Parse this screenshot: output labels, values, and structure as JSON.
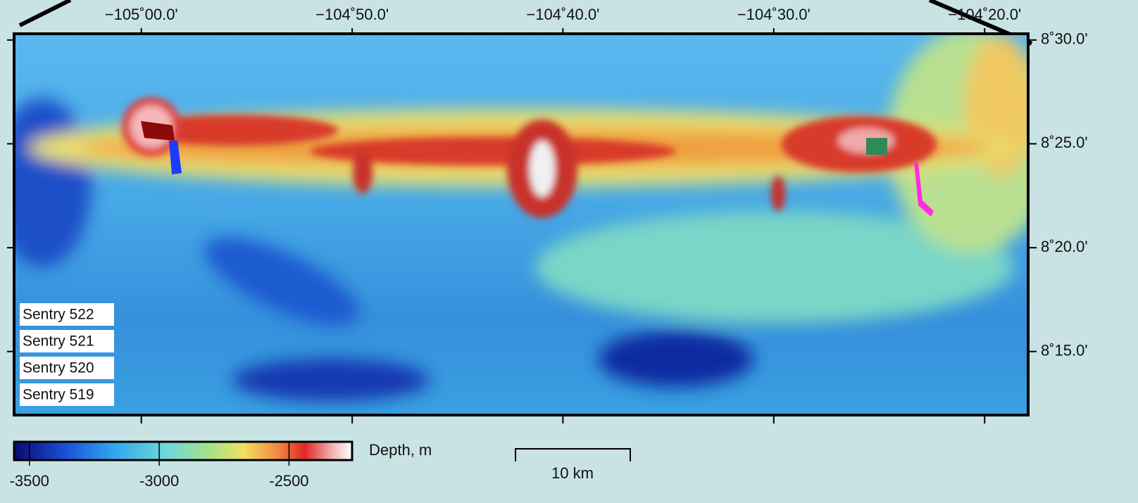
{
  "map": {
    "lonlim": [
      -105.1006,
      -104.2989
    ],
    "latlim": [
      8.199,
      8.505
    ],
    "lon_ticks": [
      {
        "value": -105.0,
        "label": "−105˚00.0'"
      },
      {
        "value": -104.8333,
        "label": "−104˚50.0'"
      },
      {
        "value": -104.6667,
        "label": "−104˚40.0'"
      },
      {
        "value": -104.5,
        "label": "−104˚30.0'"
      },
      {
        "value": -104.3333,
        "label": "−104˚20.0'"
      }
    ],
    "lat_ticks": [
      {
        "value": 8.5,
        "label": "8˚30.0'"
      },
      {
        "value": 8.4167,
        "label": "8˚25.0'"
      },
      {
        "value": 8.3333,
        "label": "8˚20.0'"
      },
      {
        "value": 8.25,
        "label": "8˚15.0'"
      }
    ],
    "legend": [
      {
        "label": "Sentry 522",
        "color": "#2e8b57"
      },
      {
        "label": "Sentry 521",
        "color": "#a01010"
      },
      {
        "label": "Sentry 520",
        "color": "#1a3cff"
      },
      {
        "label": "Sentry 519",
        "color": "#ff2ee0"
      }
    ],
    "colorbar": {
      "title": "Depth, m",
      "lim": [
        -3559,
        -2257
      ],
      "ticks": [
        -3500,
        -3000,
        -2500
      ]
    },
    "scale_bar": {
      "label": "10 km"
    }
  }
}
